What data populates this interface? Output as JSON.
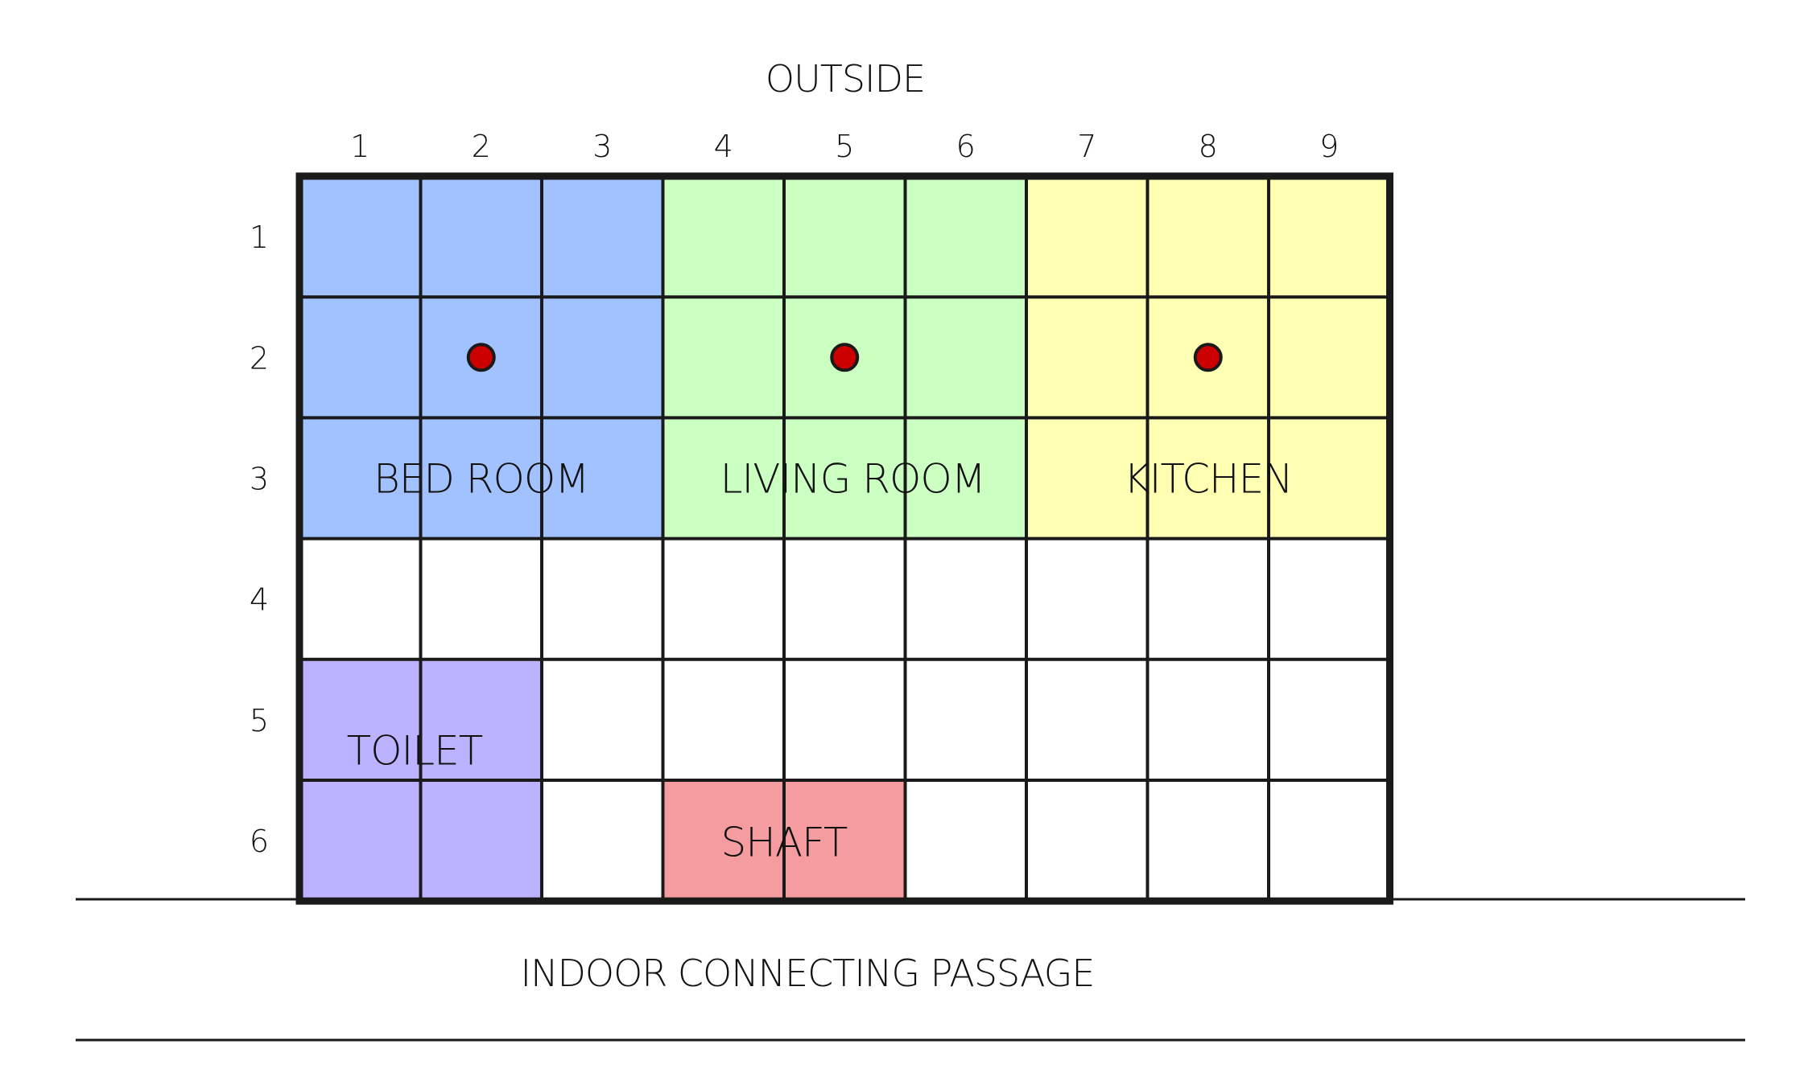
{
  "labels": {
    "outside": "OUTSIDE",
    "passage": "INDOOR CONNECTING PASSAGE"
  },
  "grid": {
    "columns": [
      "1",
      "2",
      "3",
      "4",
      "5",
      "6",
      "7",
      "8",
      "9"
    ],
    "rows": [
      "1",
      "2",
      "3",
      "4",
      "5",
      "6"
    ]
  },
  "rooms": [
    {
      "id": "bedroom",
      "name": "BED ROOM",
      "color": "#a2c2ff",
      "col_span": [
        1,
        3
      ],
      "row_span": [
        1,
        3
      ],
      "marker_cell": [
        2,
        2
      ]
    },
    {
      "id": "livingroom",
      "name": "LIVING ROOM",
      "color": "#ccffc2",
      "col_span": [
        4,
        6
      ],
      "row_span": [
        1,
        3
      ],
      "marker_cell": [
        5,
        2
      ]
    },
    {
      "id": "kitchen",
      "name": "KITCHEN",
      "color": "#ffffb3",
      "col_span": [
        7,
        9
      ],
      "row_span": [
        1,
        3
      ],
      "marker_cell": [
        8,
        2
      ]
    },
    {
      "id": "toilet",
      "name": "TOILET",
      "color": "#bdb2ff",
      "col_span": [
        1,
        2
      ],
      "row_span": [
        5,
        6
      ],
      "marker_cell": null
    },
    {
      "id": "shaft",
      "name": "SHAFT",
      "color": "#f59ca0",
      "col_span": [
        4,
        5
      ],
      "row_span": [
        6,
        6
      ],
      "marker_cell": null
    }
  ],
  "colors": {
    "marker": "#cc0000",
    "line": "#1a1a1a"
  }
}
